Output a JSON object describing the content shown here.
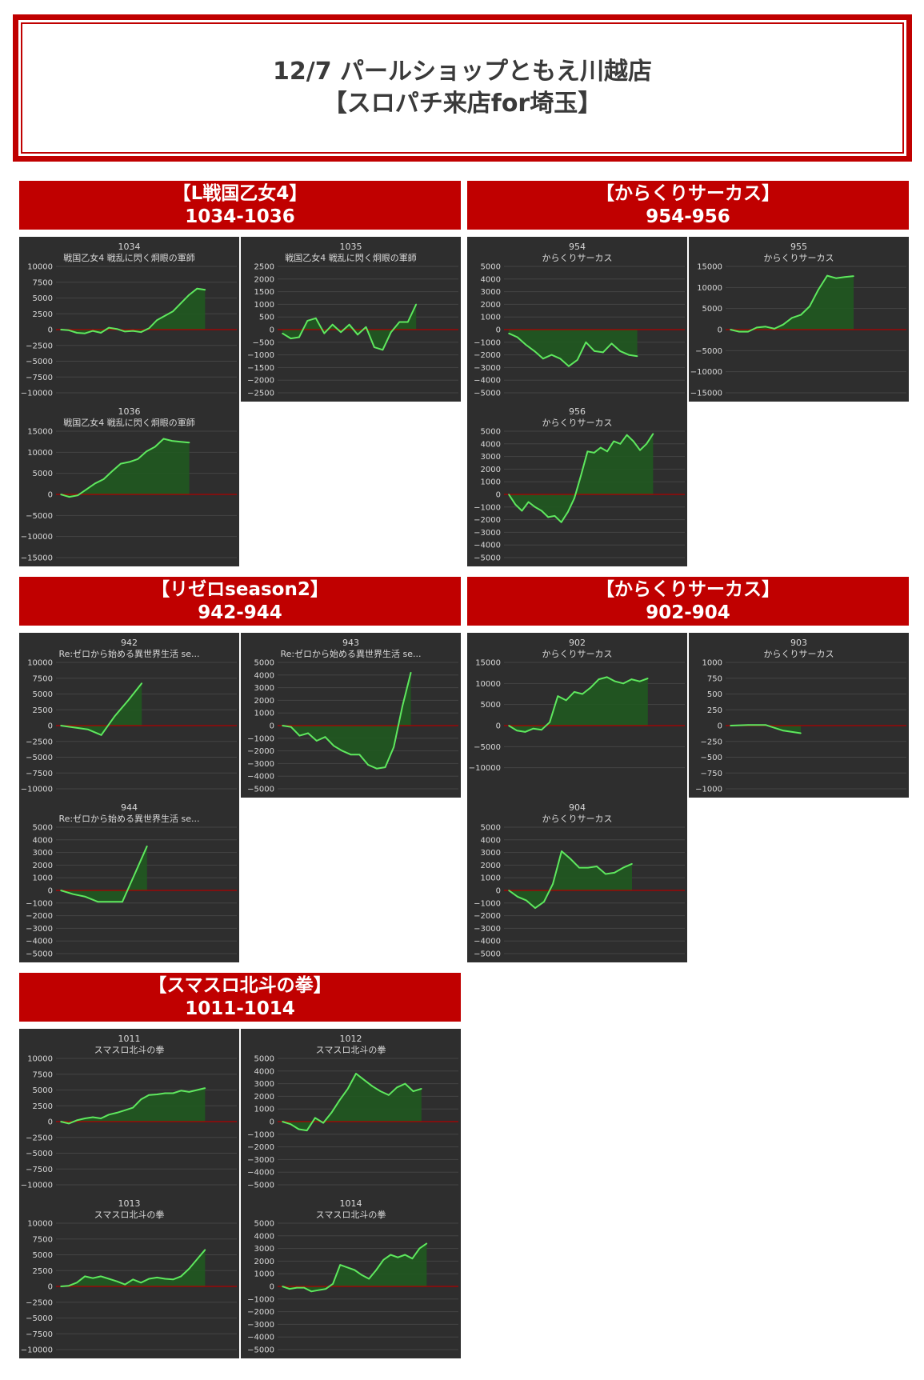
{
  "page": {
    "title_line1": "12/7 パールショップともえ川越店",
    "title_line2": "【スロパチ来店for埼玉】"
  },
  "colors": {
    "red": "#c00000",
    "panel_bg": "#2e2e2e",
    "line": "#5ee85e",
    "fill": "#1f5a1f",
    "zero": "#b00000",
    "text": "#d8d8d8"
  },
  "sections": [
    {
      "name": "【L戦国乙女4】",
      "range": "1034-1036"
    },
    {
      "name": "【からくりサーカス】",
      "range": "954-956"
    },
    {
      "name": "【リゼロseason2】",
      "range": "942-944"
    },
    {
      "name": "【からくりサーカス】",
      "range": "902-904"
    },
    {
      "name": "【スマスロ北斗の拳】",
      "range": "1011-1014"
    }
  ],
  "chart_data": [
    {
      "type": "line",
      "section": 0,
      "machine": "1034",
      "name": "戦国乙女4 戦乱に閃く炯眼の軍師",
      "ylim": [
        -10000,
        10000
      ],
      "yticks": [
        10000,
        7500,
        5000,
        2500,
        0,
        -2500,
        -5000,
        -7500,
        -10000
      ],
      "values": [
        0,
        -100,
        -500,
        -600,
        -200,
        -500,
        300,
        100,
        -300,
        -200,
        -400,
        200,
        1500,
        2200,
        2900,
        4200,
        5500,
        6500,
        6300
      ]
    },
    {
      "type": "line",
      "section": 0,
      "machine": "1035",
      "name": "戦国乙女4 戦乱に閃く炯眼の軍師",
      "ylim": [
        -2500,
        2500
      ],
      "yticks": [
        2500,
        2000,
        1500,
        1000,
        500,
        0,
        -500,
        -1000,
        -1500,
        -2000,
        -2500
      ],
      "values": [
        -150,
        -350,
        -300,
        350,
        450,
        -150,
        200,
        -100,
        200,
        -200,
        100,
        -700,
        -800,
        -100,
        300,
        300,
        1000
      ]
    },
    {
      "type": "line",
      "section": 0,
      "machine": "1036",
      "name": "戦国乙女4 戦乱に閃く炯眼の軍師",
      "ylim": [
        -15000,
        15000
      ],
      "yticks": [
        15000,
        10000,
        5000,
        0,
        -5000,
        -10000,
        -15000
      ],
      "values": [
        0,
        -600,
        -200,
        1200,
        2600,
        3600,
        5500,
        7300,
        7700,
        8400,
        10200,
        11300,
        13200,
        12700,
        12500,
        12300
      ]
    },
    {
      "type": "line",
      "section": 1,
      "machine": "954",
      "name": "からくりサーカス",
      "ylim": [
        -5000,
        5000
      ],
      "yticks": [
        5000,
        4000,
        3000,
        2000,
        1000,
        0,
        -1000,
        -2000,
        -3000,
        -4000,
        -5000
      ],
      "values": [
        -300,
        -600,
        -1200,
        -1700,
        -2300,
        -2000,
        -2300,
        -2900,
        -2400,
        -1000,
        -1700,
        -1800,
        -1100,
        -1700,
        -2000,
        -2100
      ]
    },
    {
      "type": "line",
      "section": 1,
      "machine": "955",
      "name": "からくりサーカス",
      "ylim": [
        -15000,
        15000
      ],
      "yticks": [
        15000,
        10000,
        5000,
        0,
        -5000,
        -10000,
        -15000
      ],
      "values": [
        0,
        -500,
        -500,
        500,
        700,
        200,
        1200,
        2800,
        3500,
        5500,
        9500,
        12800,
        12200,
        12500,
        12700
      ]
    },
    {
      "type": "line",
      "section": 1,
      "machine": "956",
      "name": "からくりサーカス",
      "ylim": [
        -5000,
        5000
      ],
      "yticks": [
        5000,
        4000,
        3000,
        2000,
        1000,
        0,
        -1000,
        -2000,
        -3000,
        -4000,
        -5000
      ],
      "values": [
        0,
        -800,
        -1300,
        -600,
        -1000,
        -1300,
        -1800,
        -1700,
        -2200,
        -1400,
        -300,
        1500,
        3400,
        3300,
        3700,
        3400,
        4200,
        4000,
        4700,
        4200,
        3500,
        4000,
        4800
      ]
    },
    {
      "type": "line",
      "section": 2,
      "machine": "942",
      "name": "Re:ゼロから始める異世界生活 se...",
      "ylim": [
        -10000,
        10000
      ],
      "yticks": [
        10000,
        7500,
        5000,
        2500,
        0,
        -2500,
        -5000,
        -7500,
        -10000
      ],
      "values": [
        0,
        -300,
        -600,
        -1500,
        1500,
        4000,
        6700
      ]
    },
    {
      "type": "line",
      "section": 2,
      "machine": "943",
      "name": "Re:ゼロから始める異世界生活 se...",
      "ylim": [
        -5000,
        5000
      ],
      "yticks": [
        5000,
        4000,
        3000,
        2000,
        1000,
        0,
        -1000,
        -2000,
        -3000,
        -4000,
        -5000
      ],
      "values": [
        0,
        -100,
        -800,
        -600,
        -1200,
        -900,
        -1600,
        -2000,
        -2300,
        -2300,
        -3100,
        -3400,
        -3300,
        -1700,
        1500,
        4200
      ]
    },
    {
      "type": "line",
      "section": 2,
      "machine": "944",
      "name": "Re:ゼロから始める異世界生活 se...",
      "ylim": [
        -5000,
        5000
      ],
      "yticks": [
        5000,
        4000,
        3000,
        2000,
        1000,
        0,
        -1000,
        -2000,
        -3000,
        -4000,
        -5000
      ],
      "values": [
        0,
        -300,
        -500,
        -900,
        -900,
        -900,
        1300,
        3500
      ]
    },
    {
      "type": "line",
      "section": 3,
      "machine": "902",
      "name": "からくりサーカス",
      "ylim": [
        -15000,
        15000
      ],
      "yticks": [
        15000,
        10000,
        5000,
        0,
        -5000,
        -10000
      ],
      "values": [
        0,
        -1200,
        -1500,
        -700,
        -1000,
        800,
        7000,
        6000,
        8000,
        7500,
        9000,
        11000,
        11500,
        10500,
        10000,
        11000,
        10500,
        11200
      ]
    },
    {
      "type": "line",
      "section": 3,
      "machine": "903",
      "name": "からくりサーカス",
      "ylim": [
        -1000,
        1000
      ],
      "yticks": [
        1000,
        750,
        500,
        250,
        0,
        -250,
        -500,
        -750,
        -1000
      ],
      "values": [
        0,
        10,
        10,
        -80,
        -120
      ]
    },
    {
      "type": "line",
      "section": 3,
      "machine": "904",
      "name": "からくりサーカス",
      "ylim": [
        -5000,
        5000
      ],
      "yticks": [
        5000,
        4000,
        3000,
        2000,
        1000,
        0,
        -1000,
        -2000,
        -3000,
        -4000,
        -5000
      ],
      "values": [
        0,
        -500,
        -800,
        -1400,
        -900,
        500,
        3100,
        2500,
        1800,
        1800,
        1900,
        1300,
        1400,
        1800,
        2100
      ]
    },
    {
      "type": "line",
      "section": 4,
      "machine": "1011",
      "name": "スマスロ北斗の拳",
      "ylim": [
        -10000,
        10000
      ],
      "yticks": [
        10000,
        7500,
        5000,
        2500,
        0,
        -2500,
        -5000,
        -7500,
        -10000
      ],
      "values": [
        0,
        -300,
        200,
        500,
        700,
        500,
        1100,
        1400,
        1800,
        2200,
        3500,
        4200,
        4300,
        4500,
        4500,
        4900,
        4700,
        5000,
        5300
      ]
    },
    {
      "type": "line",
      "section": 4,
      "machine": "1012",
      "name": "スマスロ北斗の拳",
      "ylim": [
        -5000,
        5000
      ],
      "yticks": [
        5000,
        4000,
        3000,
        2000,
        1000,
        0,
        -1000,
        -2000,
        -3000,
        -4000,
        -5000
      ],
      "values": [
        0,
        -200,
        -600,
        -700,
        300,
        -100,
        700,
        1700,
        2600,
        3800,
        3300,
        2800,
        2400,
        2100,
        2700,
        3000,
        2400,
        2600
      ]
    },
    {
      "type": "line",
      "section": 4,
      "machine": "1013",
      "name": "スマスロ北斗の拳",
      "ylim": [
        -10000,
        10000
      ],
      "yticks": [
        10000,
        7500,
        5000,
        2500,
        0,
        -2500,
        -5000,
        -7500,
        -10000
      ],
      "values": [
        0,
        100,
        600,
        1600,
        1300,
        1600,
        1200,
        800,
        300,
        1100,
        600,
        1200,
        1400,
        1200,
        1100,
        1600,
        2800,
        4300,
        5800
      ]
    },
    {
      "type": "line",
      "section": 4,
      "machine": "1014",
      "name": "スマスロ北斗の拳",
      "ylim": [
        -5000,
        5000
      ],
      "yticks": [
        5000,
        4000,
        3000,
        2000,
        1000,
        0,
        -1000,
        -2000,
        -3000,
        -4000,
        -5000
      ],
      "values": [
        0,
        -200,
        -100,
        -100,
        -400,
        -300,
        -200,
        200,
        1700,
        1500,
        1300,
        900,
        600,
        1300,
        2100,
        2500,
        2300,
        2500,
        2200,
        3000,
        3400
      ]
    }
  ]
}
